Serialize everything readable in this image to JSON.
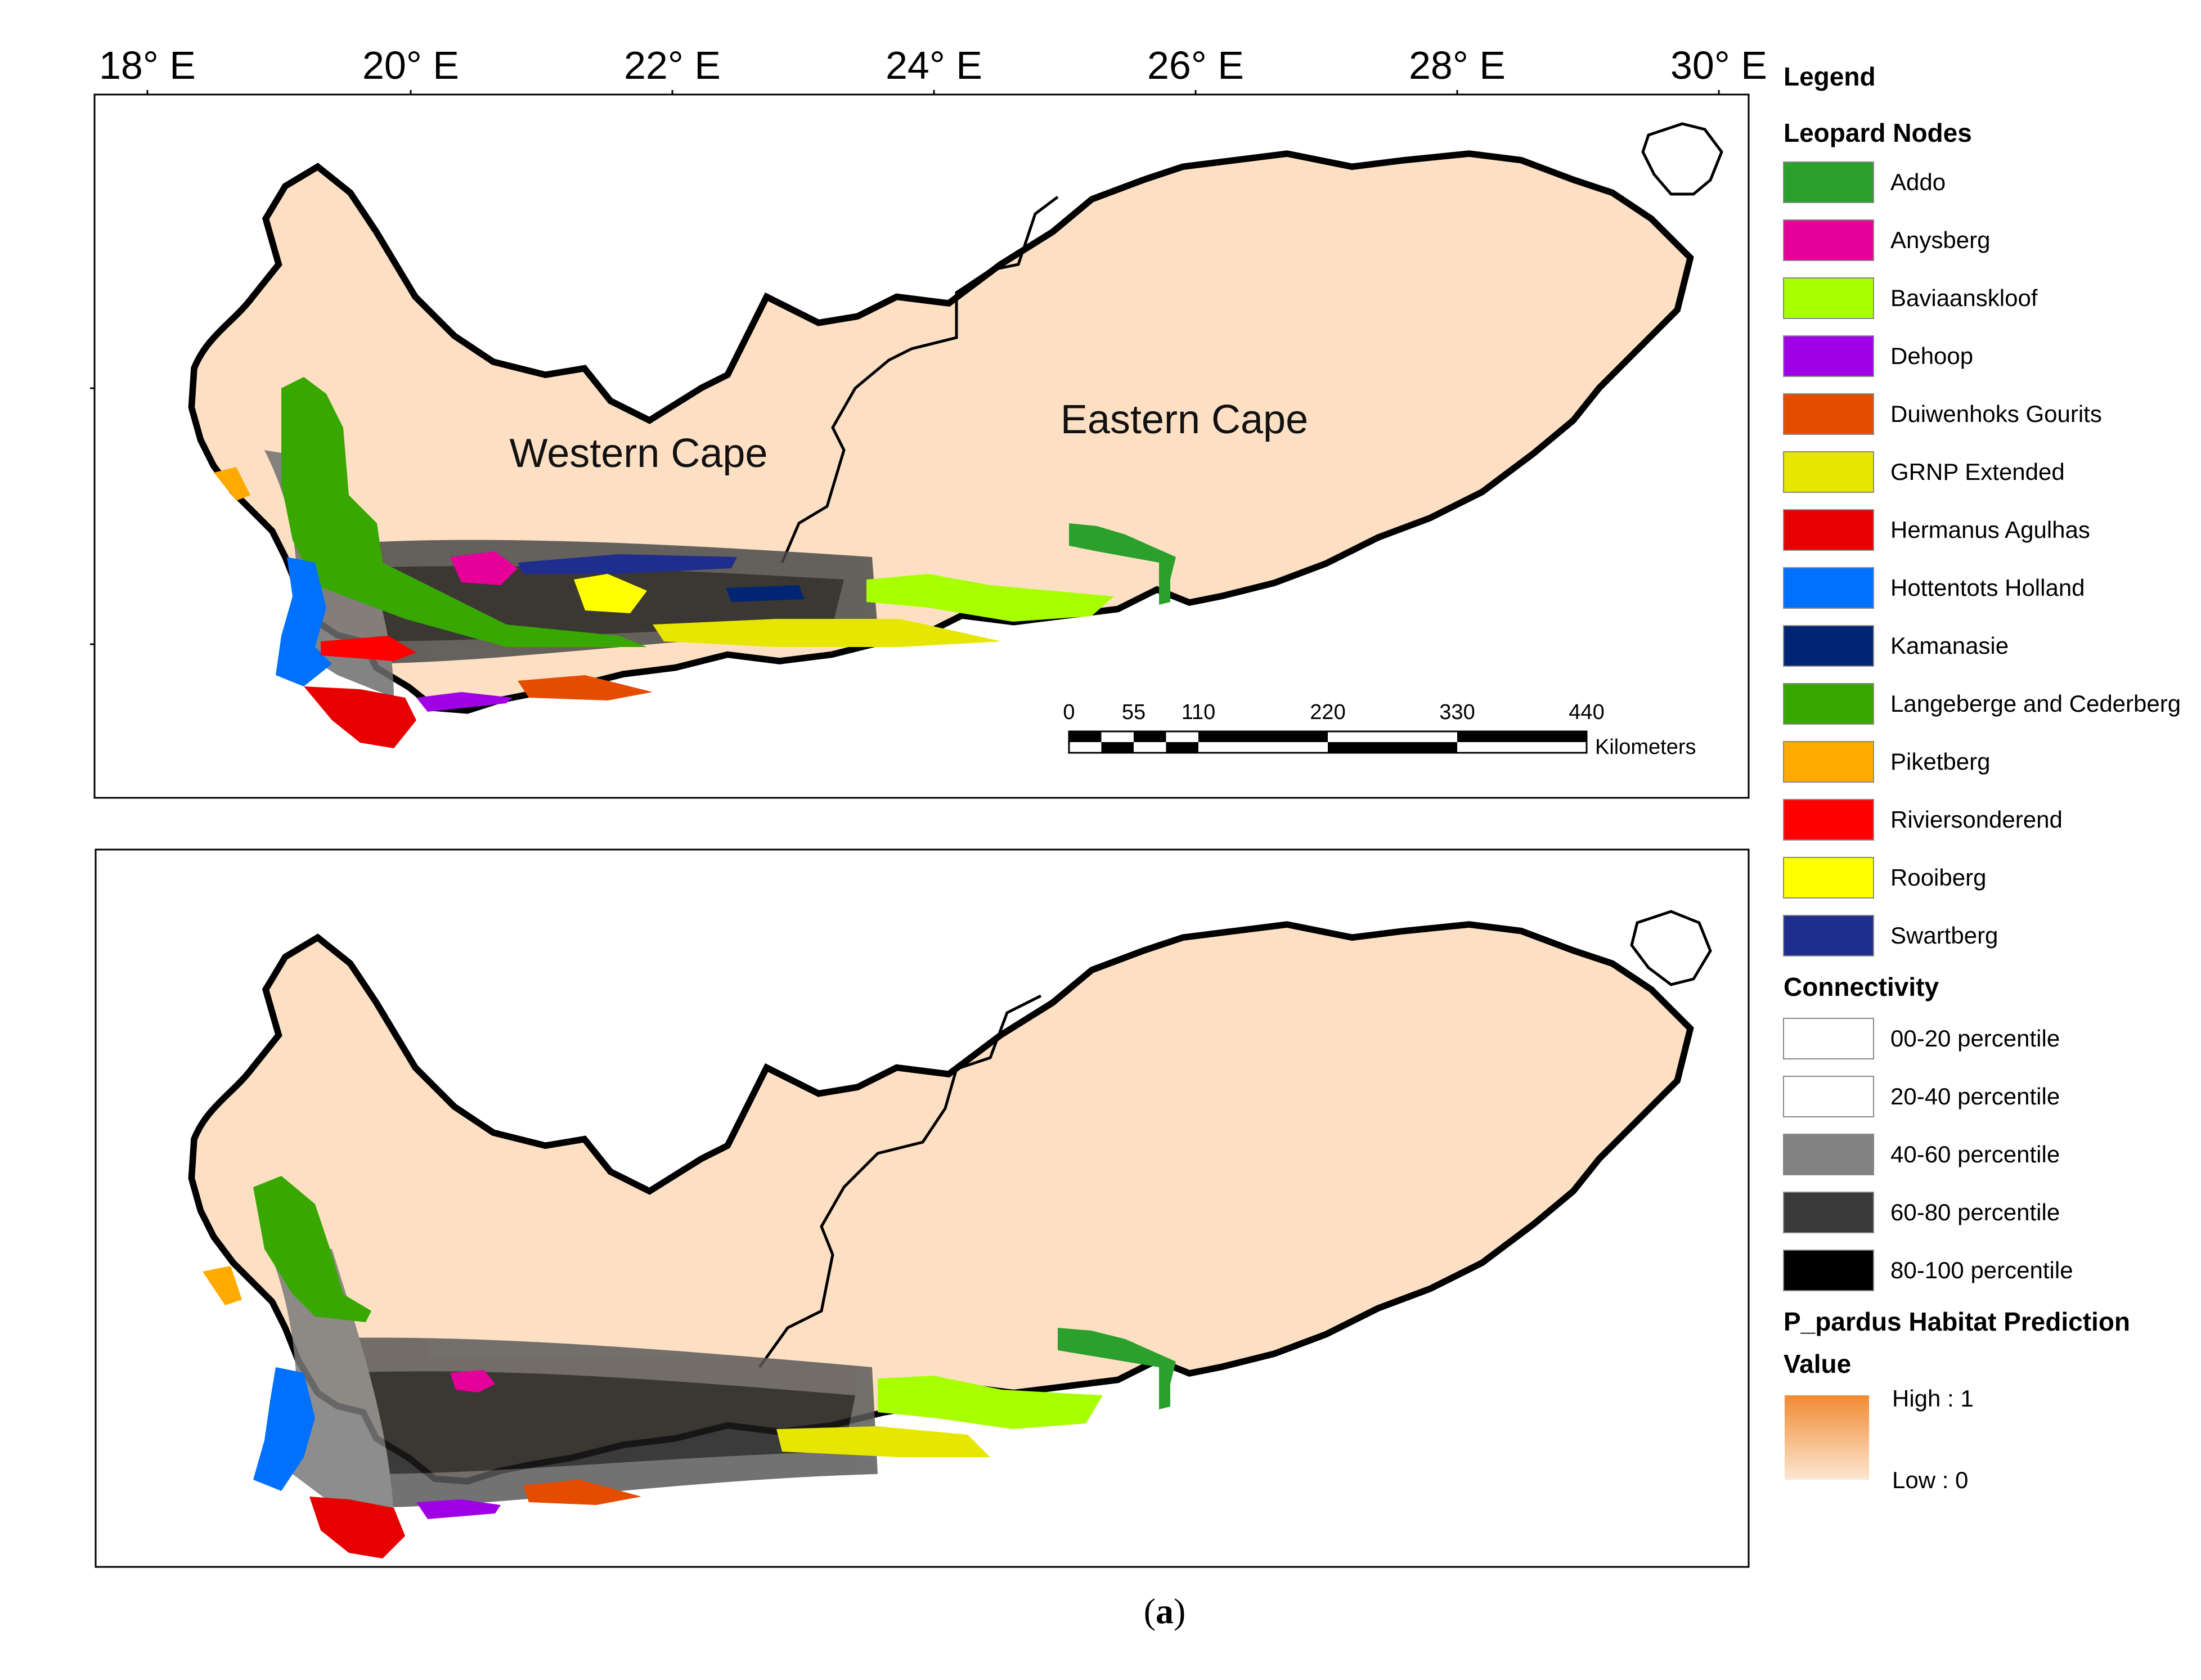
{
  "longitudes": [
    {
      "label": "18° E"
    },
    {
      "label": "20° E"
    },
    {
      "label": "22° E"
    },
    {
      "label": "24° E"
    },
    {
      "label": "26° E"
    },
    {
      "label": "28° E"
    },
    {
      "label": "30° E"
    }
  ],
  "regions": {
    "western": "Western Cape",
    "eastern": "Eastern Cape"
  },
  "scalebar": {
    "ticks": [
      "0",
      "55",
      "110",
      "220",
      "330",
      "440"
    ],
    "unit": "Kilometers"
  },
  "legend": {
    "title": "Legend",
    "nodes_header": "Leopard Nodes",
    "nodes": [
      {
        "label": "Addo",
        "color": "#2ca02c"
      },
      {
        "label": "Anysberg",
        "color": "#e6009a"
      },
      {
        "label": "Baviaanskloof",
        "color": "#a8ff00"
      },
      {
        "label": "Dehoop",
        "color": "#a000e6"
      },
      {
        "label": "Duiwenhoks Gourits",
        "color": "#e64c00"
      },
      {
        "label": "GRNP Extended",
        "color": "#e6e600"
      },
      {
        "label": "Hermanus Agulhas",
        "color": "#e60000"
      },
      {
        "label": "Hottentots Holland",
        "color": "#0070ff"
      },
      {
        "label": "Kamanasie",
        "color": "#002673"
      },
      {
        "label": "Langeberge and Cederberg",
        "color": "#38a800"
      },
      {
        "label": "Piketberg",
        "color": "#ffaa00"
      },
      {
        "label": "Riviersonderend",
        "color": "#ff0000"
      },
      {
        "label": "Rooiberg",
        "color": "#ffff00"
      },
      {
        "label": "Swartberg",
        "color": "#1f2d8c"
      }
    ],
    "connectivity_header": "Connectivity",
    "connectivity": [
      {
        "label": "00-20 percentile",
        "color": "#ffffff"
      },
      {
        "label": "20-40 percentile",
        "color": "#ffffff"
      },
      {
        "label": "40-60 percentile",
        "color": "#828282"
      },
      {
        "label": "60-80 percentile",
        "color": "#3a3a3a"
      },
      {
        "label": "80-100 percentile",
        "color": "#000000"
      }
    ],
    "habitat_header": "P_pardus Habitat Prediction",
    "value_header": "Value",
    "high": "High : 1",
    "low": "Low : 0",
    "ramp_high": "#f08a32",
    "ramp_low": "#fde7d2"
  },
  "caption": {
    "open": "(",
    "letter": "a",
    "close": ")"
  }
}
